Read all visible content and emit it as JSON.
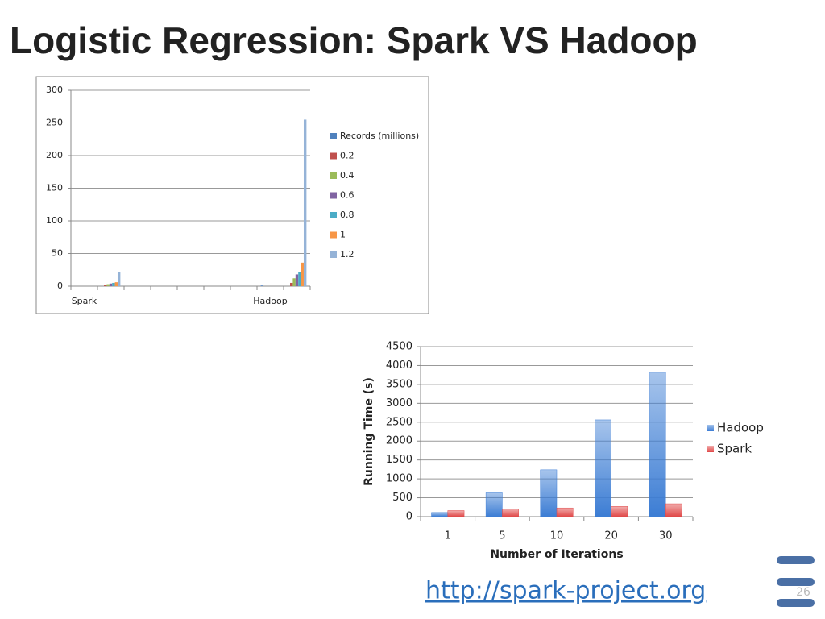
{
  "slide": {
    "title": "Logistic Regression: Spark VS Hadoop",
    "url": "http://spark-project.org",
    "page_number": "26"
  },
  "chart_data": [
    {
      "type": "bar",
      "categories": [
        "Spark",
        null,
        null,
        null,
        null,
        null,
        null,
        "Hadoop",
        null
      ],
      "series": [
        {
          "name": "Records (millions)",
          "color": "#4f81bd",
          "values": [
            null,
            0,
            null,
            null,
            null,
            null,
            null,
            1,
            0
          ]
        },
        {
          "name": "0.2",
          "color": "#c0504d",
          "values": [
            null,
            2,
            null,
            null,
            null,
            null,
            null,
            null,
            5
          ]
        },
        {
          "name": "0.4",
          "color": "#9bbb59",
          "values": [
            null,
            3,
            null,
            null,
            null,
            null,
            null,
            null,
            12
          ]
        },
        {
          "name": "0.6",
          "color": "#8064a2",
          "values": [
            null,
            4,
            null,
            null,
            null,
            null,
            null,
            null,
            18
          ]
        },
        {
          "name": "0.8",
          "color": "#4bacc6",
          "values": [
            null,
            5,
            null,
            null,
            null,
            null,
            null,
            null,
            21
          ]
        },
        {
          "name": "1",
          "color": "#f79646",
          "values": [
            null,
            6,
            null,
            null,
            null,
            null,
            null,
            null,
            36
          ]
        },
        {
          "name": "1.2",
          "color": "#95b3d7",
          "values": [
            null,
            22,
            null,
            null,
            null,
            null,
            null,
            null,
            255
          ]
        }
      ],
      "ylim": [
        0,
        300
      ],
      "yticks": [
        0,
        50,
        100,
        150,
        200,
        250,
        300
      ],
      "grid": true,
      "legend": "right"
    },
    {
      "type": "bar",
      "x_label": "Number of Iterations",
      "y_label": "Running Time (s)",
      "categories": [
        "1",
        "5",
        "10",
        "20",
        "30"
      ],
      "series": [
        {
          "name": "Hadoop",
          "color": "#3c7dd4",
          "values": [
            110,
            630,
            1240,
            2560,
            3820
          ]
        },
        {
          "name": "Spark",
          "color": "#e04848",
          "values": [
            160,
            200,
            230,
            270,
            340
          ]
        }
      ],
      "ylim": [
        0,
        4500
      ],
      "yticks": [
        0,
        500,
        1000,
        1500,
        2000,
        2500,
        3000,
        3500,
        4000,
        4500
      ],
      "grid": true,
      "legend": "right",
      "gradient": true
    }
  ]
}
